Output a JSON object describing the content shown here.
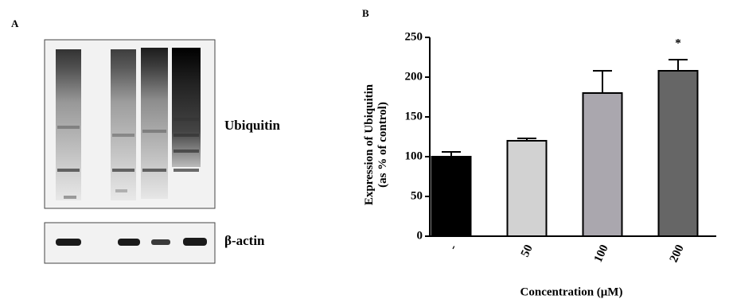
{
  "panel_a": {
    "label": "A",
    "blot_labels": [
      "Ubiquitin",
      "β-actin"
    ]
  },
  "panel_b": {
    "label": "B"
  },
  "chart_data": {
    "type": "bar",
    "y_label": [
      "Expression of Ubiquitin",
      "(as % of control)"
    ],
    "x_label": "Concentration (μM)",
    "categories": [
      "-",
      "50",
      "100",
      "200"
    ],
    "values": [
      100,
      120,
      180,
      208
    ],
    "errors": [
      6,
      3,
      28,
      14
    ],
    "colors": [
      "#000000",
      "#d2d2d2",
      "#aaa7ae",
      "#666666"
    ],
    "value_annotations": [
      null,
      null,
      null,
      "*"
    ],
    "ylim": [
      0,
      250
    ],
    "yticks": [
      0,
      50,
      100,
      150,
      200,
      250
    ]
  }
}
